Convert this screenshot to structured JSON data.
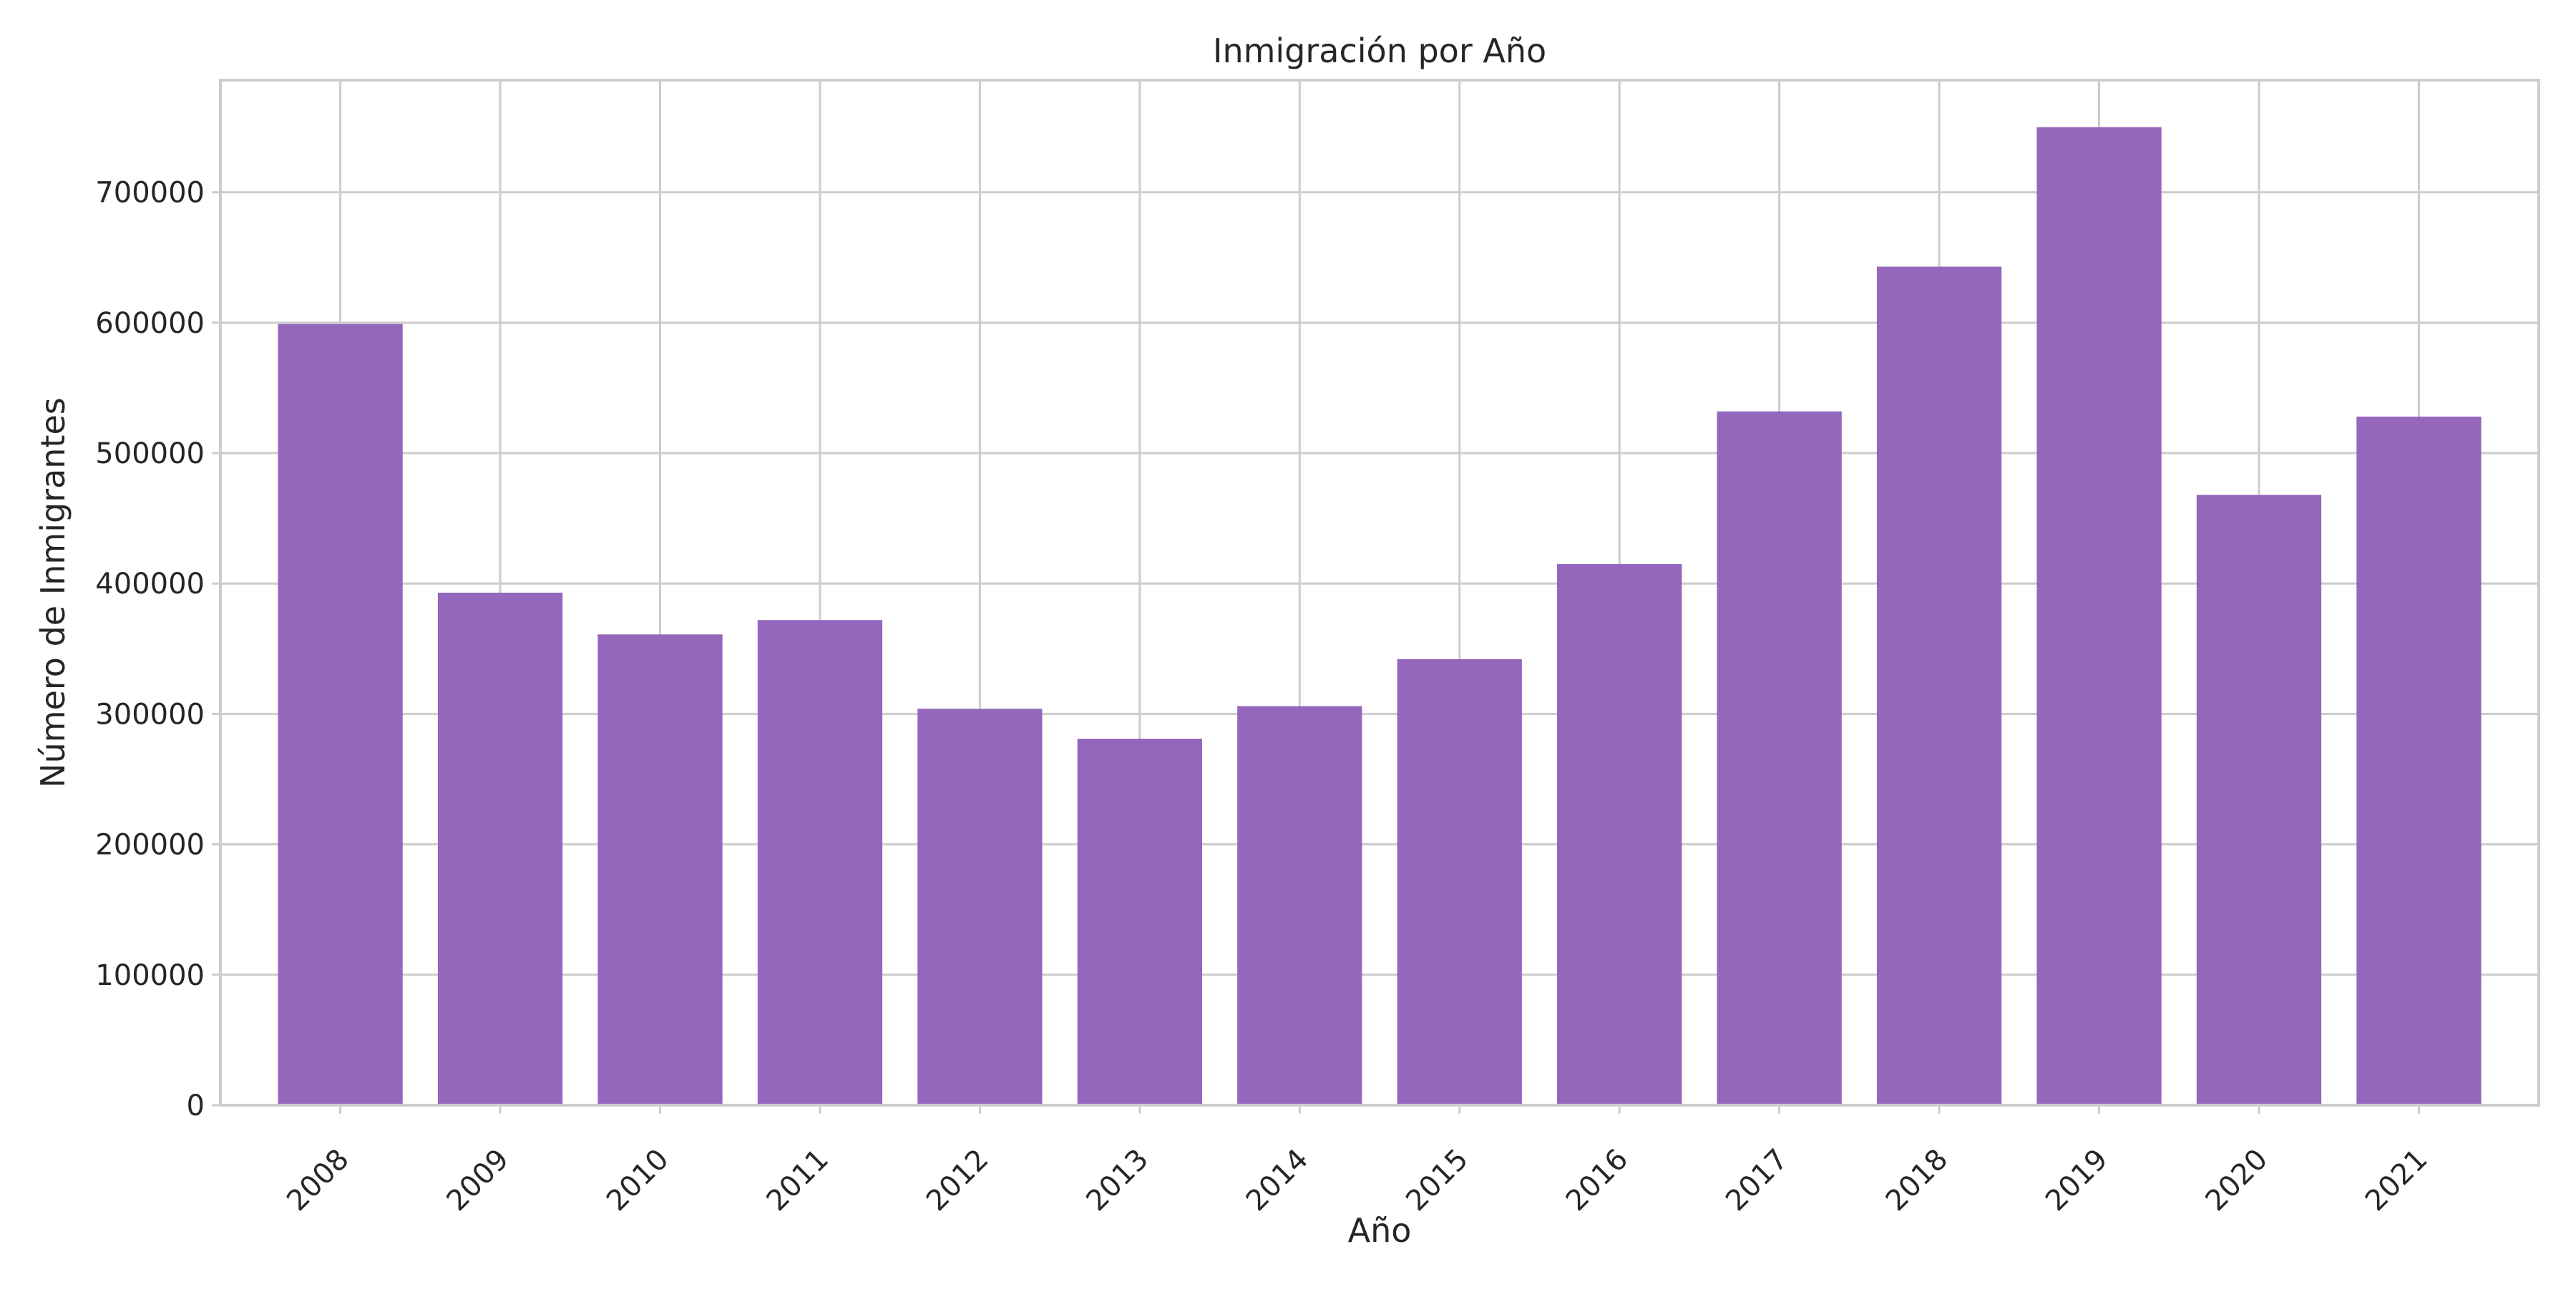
{
  "chart_data": {
    "type": "bar",
    "title": "Inmigración por Año",
    "xlabel": "Año",
    "ylabel": "Número de Inmigrantes",
    "categories": [
      "2008",
      "2009",
      "2010",
      "2011",
      "2012",
      "2013",
      "2014",
      "2015",
      "2016",
      "2017",
      "2018",
      "2019",
      "2020",
      "2021"
    ],
    "values": [
      599000,
      393000,
      361000,
      372000,
      304000,
      281000,
      306000,
      342000,
      415000,
      532000,
      643000,
      750000,
      468000,
      528000
    ],
    "ylim": [
      0,
      786000
    ],
    "yticks": [
      0,
      100000,
      200000,
      300000,
      400000,
      500000,
      600000,
      700000
    ],
    "ytick_labels": [
      "0",
      "100000",
      "200000",
      "300000",
      "400000",
      "500000",
      "600000",
      "700000"
    ],
    "bar_color": "#9467bd",
    "grid": true,
    "xtick_rotation_deg": 45
  }
}
